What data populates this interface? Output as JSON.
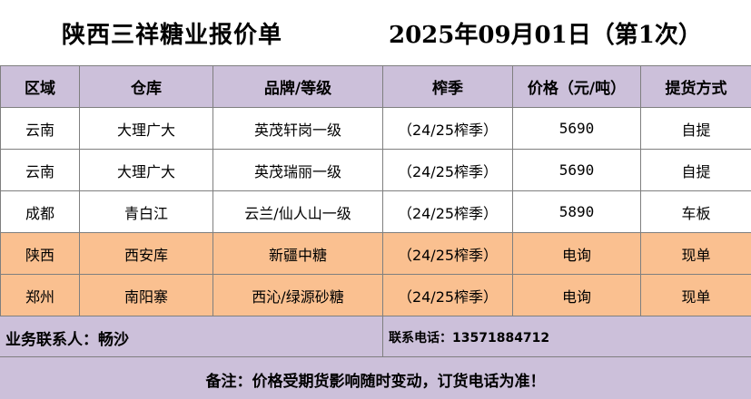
{
  "title": {
    "main": "陕西三祥糖业报价单",
    "date": "2025年09月01日（第1次）"
  },
  "table": {
    "headers": [
      "区域",
      "仓库",
      "品牌/等级",
      "榨季",
      "价格（元/吨）",
      "提货方式"
    ],
    "rows": [
      {
        "region": "云南",
        "warehouse": "大理广大",
        "brand": "英茂轩岗一级",
        "season": "（24/25榨季）",
        "price": "5690",
        "delivery": "自提"
      },
      {
        "region": "云南",
        "warehouse": "大理广大",
        "brand": "英茂瑞丽一级",
        "season": "（24/25榨季）",
        "price": "5690",
        "delivery": "自提"
      },
      {
        "region": "成都",
        "warehouse": "青白江",
        "brand": "云兰/仙人山一级",
        "season": "（24/25榨季）",
        "price": "5890",
        "delivery": "车板"
      },
      {
        "region": "陕西",
        "warehouse": "西安库",
        "brand": "新疆中糖",
        "season": "（24/25榨季）",
        "price": "电询",
        "delivery": "现单"
      },
      {
        "region": "郑州",
        "warehouse": "南阳寨",
        "brand": "西沁/绿源砂糖",
        "season": "（24/25榨季）",
        "price": "电询",
        "delivery": "现单"
      }
    ]
  },
  "contact": {
    "person": "业务联系人：畅沙",
    "phone": "联系电话：13571884712"
  },
  "note": "备注：价格受期货影响随时变动，订货电话为准！",
  "colors": {
    "header_bg": "#ccc0da",
    "highlight_row_bg": "#fac090",
    "border": "#7f7f7f"
  }
}
